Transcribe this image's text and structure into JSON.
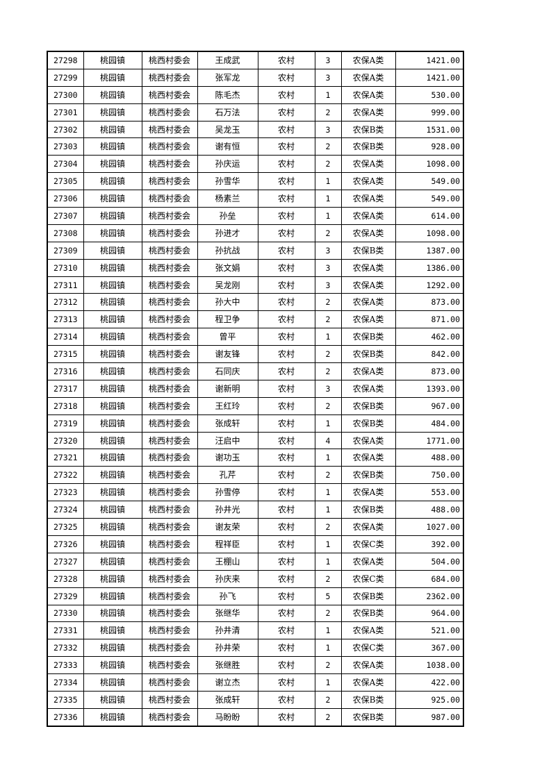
{
  "table": {
    "rows": [
      [
        "27298",
        "桃园镇",
        "桃西村委会",
        "王成武",
        "农村",
        "3",
        "农保A类",
        "1421.00"
      ],
      [
        "27299",
        "桃园镇",
        "桃西村委会",
        "张军龙",
        "农村",
        "3",
        "农保A类",
        "1421.00"
      ],
      [
        "27300",
        "桃园镇",
        "桃西村委会",
        "陈毛杰",
        "农村",
        "1",
        "农保A类",
        "530.00"
      ],
      [
        "27301",
        "桃园镇",
        "桃西村委会",
        "石万法",
        "农村",
        "2",
        "农保A类",
        "999.00"
      ],
      [
        "27302",
        "桃园镇",
        "桃西村委会",
        "吴龙玉",
        "农村",
        "3",
        "农保B类",
        "1531.00"
      ],
      [
        "27303",
        "桃园镇",
        "桃西村委会",
        "谢有恒",
        "农村",
        "2",
        "农保B类",
        "928.00"
      ],
      [
        "27304",
        "桃园镇",
        "桃西村委会",
        "孙庆运",
        "农村",
        "2",
        "农保A类",
        "1098.00"
      ],
      [
        "27305",
        "桃园镇",
        "桃西村委会",
        "孙雪华",
        "农村",
        "1",
        "农保A类",
        "549.00"
      ],
      [
        "27306",
        "桃园镇",
        "桃西村委会",
        "杨素兰",
        "农村",
        "1",
        "农保A类",
        "549.00"
      ],
      [
        "27307",
        "桃园镇",
        "桃西村委会",
        "孙垒",
        "农村",
        "1",
        "农保A类",
        "614.00"
      ],
      [
        "27308",
        "桃园镇",
        "桃西村委会",
        "孙进才",
        "农村",
        "2",
        "农保A类",
        "1098.00"
      ],
      [
        "27309",
        "桃园镇",
        "桃西村委会",
        "孙抗战",
        "农村",
        "3",
        "农保B类",
        "1387.00"
      ],
      [
        "27310",
        "桃园镇",
        "桃西村委会",
        "张文娟",
        "农村",
        "3",
        "农保A类",
        "1386.00"
      ],
      [
        "27311",
        "桃园镇",
        "桃西村委会",
        "吴龙刚",
        "农村",
        "3",
        "农保A类",
        "1292.00"
      ],
      [
        "27312",
        "桃园镇",
        "桃西村委会",
        "孙大中",
        "农村",
        "2",
        "农保A类",
        "873.00"
      ],
      [
        "27313",
        "桃园镇",
        "桃西村委会",
        "程卫争",
        "农村",
        "2",
        "农保A类",
        "871.00"
      ],
      [
        "27314",
        "桃园镇",
        "桃西村委会",
        "曾平",
        "农村",
        "1",
        "农保B类",
        "462.00"
      ],
      [
        "27315",
        "桃园镇",
        "桃西村委会",
        "谢友锋",
        "农村",
        "2",
        "农保B类",
        "842.00"
      ],
      [
        "27316",
        "桃园镇",
        "桃西村委会",
        "石同庆",
        "农村",
        "2",
        "农保A类",
        "873.00"
      ],
      [
        "27317",
        "桃园镇",
        "桃西村委会",
        "谢新明",
        "农村",
        "3",
        "农保A类",
        "1393.00"
      ],
      [
        "27318",
        "桃园镇",
        "桃西村委会",
        "王红玲",
        "农村",
        "2",
        "农保B类",
        "967.00"
      ],
      [
        "27319",
        "桃园镇",
        "桃西村委会",
        "张成轩",
        "农村",
        "1",
        "农保B类",
        "484.00"
      ],
      [
        "27320",
        "桃园镇",
        "桃西村委会",
        "汪启中",
        "农村",
        "4",
        "农保A类",
        "1771.00"
      ],
      [
        "27321",
        "桃园镇",
        "桃西村委会",
        "谢功玉",
        "农村",
        "1",
        "农保A类",
        "488.00"
      ],
      [
        "27322",
        "桃园镇",
        "桃西村委会",
        "孔芹",
        "农村",
        "2",
        "农保B类",
        "750.00"
      ],
      [
        "27323",
        "桃园镇",
        "桃西村委会",
        "孙雪停",
        "农村",
        "1",
        "农保A类",
        "553.00"
      ],
      [
        "27324",
        "桃园镇",
        "桃西村委会",
        "孙井光",
        "农村",
        "1",
        "农保B类",
        "488.00"
      ],
      [
        "27325",
        "桃园镇",
        "桃西村委会",
        "谢友荣",
        "农村",
        "2",
        "农保A类",
        "1027.00"
      ],
      [
        "27326",
        "桃园镇",
        "桃西村委会",
        "程祥臣",
        "农村",
        "1",
        "农保C类",
        "392.00"
      ],
      [
        "27327",
        "桃园镇",
        "桃西村委会",
        "王棚山",
        "农村",
        "1",
        "农保A类",
        "504.00"
      ],
      [
        "27328",
        "桃园镇",
        "桃西村委会",
        "孙庆来",
        "农村",
        "2",
        "农保C类",
        "684.00"
      ],
      [
        "27329",
        "桃园镇",
        "桃西村委会",
        "孙飞",
        "农村",
        "5",
        "农保B类",
        "2362.00"
      ],
      [
        "27330",
        "桃园镇",
        "桃西村委会",
        "张继华",
        "农村",
        "2",
        "农保B类",
        "964.00"
      ],
      [
        "27331",
        "桃园镇",
        "桃西村委会",
        "孙井清",
        "农村",
        "1",
        "农保A类",
        "521.00"
      ],
      [
        "27332",
        "桃园镇",
        "桃西村委会",
        "孙井荣",
        "农村",
        "1",
        "农保C类",
        "367.00"
      ],
      [
        "27333",
        "桃园镇",
        "桃西村委会",
        "张继胜",
        "农村",
        "2",
        "农保A类",
        "1038.00"
      ],
      [
        "27334",
        "桃园镇",
        "桃西村委会",
        "谢立杰",
        "农村",
        "1",
        "农保A类",
        "422.00"
      ],
      [
        "27335",
        "桃园镇",
        "桃西村委会",
        "张成轩",
        "农村",
        "2",
        "农保B类",
        "925.00"
      ],
      [
        "27336",
        "桃园镇",
        "桃西村委会",
        "马盼盼",
        "农村",
        "2",
        "农保B类",
        "987.00"
      ]
    ]
  }
}
